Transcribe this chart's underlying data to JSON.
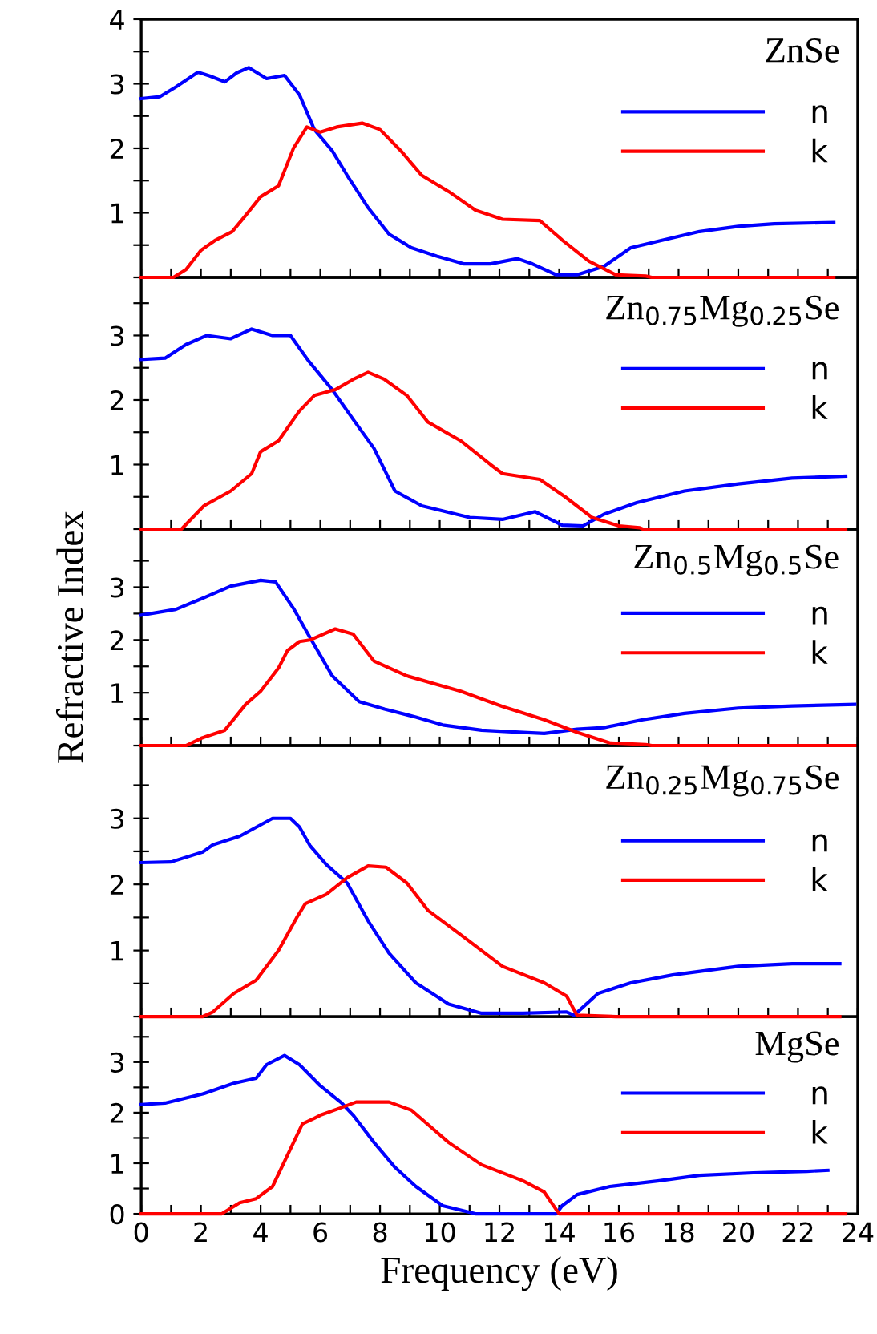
{
  "chart_data": [
    {
      "type": "line",
      "title": "ZnSe",
      "legend": "top right",
      "grid": false,
      "tick_labels": "y",
      "xlim": [
        0,
        24
      ],
      "ylim": [
        0,
        4
      ],
      "xticks": [
        {
          "value": 0,
          "label": null
        },
        {
          "value": 1,
          "label": null
        },
        {
          "value": 2,
          "label": null
        },
        {
          "value": 3,
          "label": null
        },
        {
          "value": 4,
          "label": null
        },
        {
          "value": 5,
          "label": null
        },
        {
          "value": 6,
          "label": null
        },
        {
          "value": 7,
          "label": null
        },
        {
          "value": 8,
          "label": null
        },
        {
          "value": 9,
          "label": null
        },
        {
          "value": 10,
          "label": null
        },
        {
          "value": 11,
          "label": null
        },
        {
          "value": 12,
          "label": null
        },
        {
          "value": 13,
          "label": null
        },
        {
          "value": 14,
          "label": null
        },
        {
          "value": 15,
          "label": null
        },
        {
          "value": 16,
          "label": null
        },
        {
          "value": 17,
          "label": null
        },
        {
          "value": 18,
          "label": null
        },
        {
          "value": 19,
          "label": null
        },
        {
          "value": 20,
          "label": null
        },
        {
          "value": 21,
          "label": null
        },
        {
          "value": 22,
          "label": null
        },
        {
          "value": 23,
          "label": null
        },
        {
          "value": 24,
          "label": null
        }
      ],
      "yticks": [
        {
          "value": 0,
          "label": null
        },
        {
          "value": 0.5,
          "label": null
        },
        1,
        {
          "value": 1.5,
          "label": null
        },
        2,
        {
          "value": 2.5,
          "label": null
        },
        3,
        {
          "value": 3.5,
          "label": null
        },
        4
      ],
      "series": [
        {
          "name": "n",
          "color": "#0000ff",
          "x": [
            0,
            0.63,
            1.16,
            1.9,
            2.3,
            2.8,
            3.2,
            3.6,
            4.2,
            4.8,
            5.3,
            5.8,
            6.4,
            6.9,
            7.6,
            8.3,
            9.05,
            9.9,
            10.8,
            11.7,
            12.6,
            13.1,
            13.9,
            14.6,
            15.5,
            16.4,
            17.5,
            18.7,
            20,
            21.2,
            23.2
          ],
          "values": [
            2.77,
            2.8,
            2.95,
            3.18,
            3.12,
            3.03,
            3.17,
            3.25,
            3.08,
            3.13,
            2.83,
            2.29,
            1.96,
            1.58,
            1.08,
            0.67,
            0.46,
            0.33,
            0.21,
            0.21,
            0.29,
            0.21,
            0.04,
            0.04,
            0.17,
            0.46,
            0.58,
            0.71,
            0.79,
            0.83,
            0.85
          ]
        },
        {
          "name": "k",
          "color": "#ff0000",
          "x": [
            0,
            1.08,
            1.5,
            2.0,
            2.5,
            3.05,
            3.5,
            4.0,
            4.6,
            5.1,
            5.55,
            6.0,
            6.55,
            7.4,
            8.0,
            8.7,
            9.4,
            10.3,
            11.2,
            12.1,
            13.35,
            14.1,
            15.0,
            15.9,
            16.9,
            17.1,
            23.2
          ],
          "values": [
            0,
            0,
            0.12,
            0.42,
            0.58,
            0.71,
            0.96,
            1.25,
            1.42,
            2.0,
            2.33,
            2.25,
            2.33,
            2.39,
            2.29,
            1.96,
            1.58,
            1.33,
            1.04,
            0.9,
            0.88,
            0.58,
            0.25,
            0.04,
            0.02,
            0,
            0
          ]
        }
      ]
    },
    {
      "type": "line",
      "title": "Zn$_{0.75}$Mg$_{0.25}$Se",
      "legend": "top right",
      "grid": false,
      "tick_labels": "y",
      "xlim": [
        0,
        24
      ],
      "ylim": [
        0,
        3.9
      ],
      "xticks": [
        {
          "value": 0,
          "label": null
        },
        {
          "value": 1,
          "label": null
        },
        {
          "value": 2,
          "label": null
        },
        {
          "value": 3,
          "label": null
        },
        {
          "value": 4,
          "label": null
        },
        {
          "value": 5,
          "label": null
        },
        {
          "value": 6,
          "label": null
        },
        {
          "value": 7,
          "label": null
        },
        {
          "value": 8,
          "label": null
        },
        {
          "value": 9,
          "label": null
        },
        {
          "value": 10,
          "label": null
        },
        {
          "value": 11,
          "label": null
        },
        {
          "value": 12,
          "label": null
        },
        {
          "value": 13,
          "label": null
        },
        {
          "value": 14,
          "label": null
        },
        {
          "value": 15,
          "label": null
        },
        {
          "value": 16,
          "label": null
        },
        {
          "value": 17,
          "label": null
        },
        {
          "value": 18,
          "label": null
        },
        {
          "value": 19,
          "label": null
        },
        {
          "value": 20,
          "label": null
        },
        {
          "value": 21,
          "label": null
        },
        {
          "value": 22,
          "label": null
        },
        {
          "value": 23,
          "label": null
        },
        {
          "value": 24,
          "label": null
        }
      ],
      "yticks": [
        {
          "value": 0,
          "label": null
        },
        {
          "value": 0.5,
          "label": null
        },
        1,
        {
          "value": 1.5,
          "label": null
        },
        2,
        {
          "value": 2.5,
          "label": null
        },
        3,
        {
          "value": 3.5,
          "label": null
        }
      ],
      "series": [
        {
          "name": "n",
          "color": "#0000ff",
          "x": [
            0,
            0.8,
            1.5,
            2.2,
            3.0,
            3.7,
            4.4,
            5.0,
            5.6,
            6.4,
            7.1,
            7.8,
            8.5,
            9.4,
            11.0,
            12.1,
            13.2,
            14.1,
            14.8,
            15.5,
            16.6,
            18.2,
            20.0,
            21.8,
            23.6
          ],
          "values": [
            2.63,
            2.65,
            2.86,
            3.0,
            2.95,
            3.1,
            3.0,
            3.0,
            2.61,
            2.16,
            1.7,
            1.25,
            0.59,
            0.36,
            0.18,
            0.15,
            0.27,
            0.06,
            0.05,
            0.23,
            0.41,
            0.59,
            0.7,
            0.79,
            0.82
          ]
        },
        {
          "name": "k",
          "color": "#ff0000",
          "x": [
            0,
            1.35,
            2.1,
            3.0,
            3.7,
            4.0,
            4.6,
            5.3,
            5.8,
            6.5,
            7.1,
            7.6,
            8.15,
            8.9,
            9.6,
            10.7,
            11.7,
            12.1,
            13.35,
            14.2,
            15.1,
            16.0,
            16.7,
            16.8,
            23.6
          ],
          "values": [
            0,
            0,
            0.36,
            0.59,
            0.86,
            1.2,
            1.37,
            1.83,
            2.07,
            2.16,
            2.32,
            2.43,
            2.32,
            2.07,
            1.66,
            1.37,
            1.0,
            0.86,
            0.77,
            0.5,
            0.18,
            0.05,
            0.02,
            0,
            0
          ]
        }
      ]
    },
    {
      "type": "line",
      "title": "Zn$_{0.5}$Mg$_{0.5}$Se",
      "legend": "top right",
      "grid": false,
      "tick_labels": "y",
      "ylabel": "Refractive Index",
      "xlim": [
        0,
        24
      ],
      "ylim": [
        0,
        4.1
      ],
      "xticks": [
        {
          "value": 0,
          "label": null
        },
        {
          "value": 1,
          "label": null
        },
        {
          "value": 2,
          "label": null
        },
        {
          "value": 3,
          "label": null
        },
        {
          "value": 4,
          "label": null
        },
        {
          "value": 5,
          "label": null
        },
        {
          "value": 6,
          "label": null
        },
        {
          "value": 7,
          "label": null
        },
        {
          "value": 8,
          "label": null
        },
        {
          "value": 9,
          "label": null
        },
        {
          "value": 10,
          "label": null
        },
        {
          "value": 11,
          "label": null
        },
        {
          "value": 12,
          "label": null
        },
        {
          "value": 13,
          "label": null
        },
        {
          "value": 14,
          "label": null
        },
        {
          "value": 15,
          "label": null
        },
        {
          "value": 16,
          "label": null
        },
        {
          "value": 17,
          "label": null
        },
        {
          "value": 18,
          "label": null
        },
        {
          "value": 19,
          "label": null
        },
        {
          "value": 20,
          "label": null
        },
        {
          "value": 21,
          "label": null
        },
        {
          "value": 22,
          "label": null
        },
        {
          "value": 23,
          "label": null
        },
        {
          "value": 24,
          "label": null
        }
      ],
      "yticks": [
        {
          "value": 0,
          "label": null
        },
        {
          "value": 0.5,
          "label": null
        },
        1,
        {
          "value": 1.5,
          "label": null
        },
        2,
        {
          "value": 2.5,
          "label": null
        },
        3,
        {
          "value": 3.5,
          "label": null
        }
      ],
      "series": [
        {
          "name": "n",
          "color": "#0000ff",
          "x": [
            0,
            1.16,
            2.06,
            3.0,
            4.0,
            4.5,
            5.1,
            5.6,
            6.4,
            7.3,
            8.15,
            9.2,
            10.1,
            11.4,
            12.8,
            13.5,
            14.6,
            15.5,
            16.8,
            18.2,
            20.0,
            21.8,
            23.9
          ],
          "values": [
            2.47,
            2.58,
            2.79,
            3.02,
            3.13,
            3.1,
            2.6,
            2.1,
            1.32,
            0.83,
            0.69,
            0.54,
            0.39,
            0.29,
            0.25,
            0.23,
            0.31,
            0.34,
            0.49,
            0.61,
            0.71,
            0.75,
            0.78
          ]
        },
        {
          "name": "k",
          "color": "#ff0000",
          "x": [
            0,
            1.5,
            2.06,
            2.8,
            3.5,
            4.0,
            4.6,
            4.9,
            5.3,
            5.65,
            6.5,
            7.1,
            7.8,
            8.9,
            10.7,
            12.1,
            13.5,
            14.6,
            15.7,
            16.9,
            17.1,
            23.9
          ],
          "values": [
            0,
            0,
            0.15,
            0.29,
            0.78,
            1.03,
            1.47,
            1.8,
            1.97,
            2.0,
            2.21,
            2.11,
            1.6,
            1.32,
            1.03,
            0.74,
            0.49,
            0.25,
            0.05,
            0.02,
            0,
            0
          ]
        }
      ]
    },
    {
      "type": "line",
      "title": "Zn$_{0.25}$Mg$_{0.75}$Se",
      "legend": "top right",
      "grid": false,
      "tick_labels": "y",
      "xlim": [
        0,
        24
      ],
      "ylim": [
        0,
        4.1
      ],
      "xticks": [
        {
          "value": 0,
          "label": null
        },
        {
          "value": 1,
          "label": null
        },
        {
          "value": 2,
          "label": null
        },
        {
          "value": 3,
          "label": null
        },
        {
          "value": 4,
          "label": null
        },
        {
          "value": 5,
          "label": null
        },
        {
          "value": 6,
          "label": null
        },
        {
          "value": 7,
          "label": null
        },
        {
          "value": 8,
          "label": null
        },
        {
          "value": 9,
          "label": null
        },
        {
          "value": 10,
          "label": null
        },
        {
          "value": 11,
          "label": null
        },
        {
          "value": 12,
          "label": null
        },
        {
          "value": 13,
          "label": null
        },
        {
          "value": 14,
          "label": null
        },
        {
          "value": 15,
          "label": null
        },
        {
          "value": 16,
          "label": null
        },
        {
          "value": 17,
          "label": null
        },
        {
          "value": 18,
          "label": null
        },
        {
          "value": 19,
          "label": null
        },
        {
          "value": 20,
          "label": null
        },
        {
          "value": 21,
          "label": null
        },
        {
          "value": 22,
          "label": null
        },
        {
          "value": 23,
          "label": null
        },
        {
          "value": 24,
          "label": null
        }
      ],
      "yticks": [
        {
          "value": 0,
          "label": null
        },
        {
          "value": 0.5,
          "label": null
        },
        1,
        {
          "value": 1.5,
          "label": null
        },
        2,
        {
          "value": 2.5,
          "label": null
        },
        3,
        {
          "value": 3.5,
          "label": null
        }
      ],
      "series": [
        {
          "name": "n",
          "color": "#0000ff",
          "x": [
            0,
            1.0,
            2.06,
            2.4,
            3.3,
            4.4,
            5.0,
            5.3,
            5.65,
            6.2,
            6.9,
            7.6,
            8.3,
            9.2,
            10.3,
            11.4,
            12.8,
            14.25,
            14.5,
            15.3,
            16.4,
            17.8,
            20.0,
            21.8,
            23.4
          ],
          "values": [
            2.33,
            2.34,
            2.49,
            2.6,
            2.73,
            3.0,
            3.0,
            2.87,
            2.59,
            2.3,
            2.02,
            1.45,
            0.96,
            0.51,
            0.19,
            0.05,
            0.05,
            0.07,
            0.02,
            0.35,
            0.51,
            0.63,
            0.76,
            0.8,
            0.8
          ]
        },
        {
          "name": "k",
          "color": "#ff0000",
          "x": [
            0,
            2.06,
            2.4,
            3.1,
            3.85,
            4.6,
            5.2,
            5.5,
            6.2,
            6.9,
            7.6,
            8.2,
            8.9,
            9.6,
            10.7,
            12.1,
            13.5,
            14.25,
            14.6,
            15.9,
            23.4
          ],
          "values": [
            0,
            0,
            0.07,
            0.35,
            0.55,
            1.0,
            1.49,
            1.71,
            1.85,
            2.1,
            2.28,
            2.26,
            2.02,
            1.61,
            1.24,
            0.76,
            0.51,
            0.31,
            0.02,
            0,
            0
          ]
        }
      ]
    },
    {
      "type": "line",
      "title": "MgSe",
      "legend": "right",
      "grid": false,
      "xlabel": "Frequency (eV)",
      "xlim": [
        0,
        24
      ],
      "ylim": [
        0,
        3.9
      ],
      "xticks": [
        0,
        {
          "value": 1,
          "label": null
        },
        2,
        {
          "value": 3,
          "label": null
        },
        4,
        {
          "value": 5,
          "label": null
        },
        6,
        {
          "value": 7,
          "label": null
        },
        8,
        {
          "value": 9,
          "label": null
        },
        10,
        {
          "value": 11,
          "label": null
        },
        12,
        {
          "value": 13,
          "label": null
        },
        14,
        {
          "value": 15,
          "label": null
        },
        16,
        {
          "value": 17,
          "label": null
        },
        18,
        {
          "value": 19,
          "label": null
        },
        20,
        {
          "value": 21,
          "label": null
        },
        22,
        {
          "value": 23,
          "label": null
        },
        24
      ],
      "yticks": [
        0,
        {
          "value": 0.5,
          "label": null
        },
        1,
        {
          "value": 1.5,
          "label": null
        },
        2,
        {
          "value": 2.5,
          "label": null
        },
        3,
        {
          "value": 3.5,
          "label": null
        }
      ],
      "series": [
        {
          "name": "n",
          "color": "#0000ff",
          "x": [
            0,
            0.8,
            2.06,
            3.1,
            3.85,
            4.2,
            4.8,
            5.3,
            6.0,
            6.7,
            7.1,
            7.8,
            8.5,
            9.2,
            10.1,
            11.2,
            13.9,
            14.1,
            14.6,
            15.7,
            17.3,
            18.7,
            20.5,
            22.3,
            23.0
          ],
          "values": [
            2.16,
            2.19,
            2.37,
            2.58,
            2.68,
            2.95,
            3.13,
            2.95,
            2.53,
            2.2,
            1.95,
            1.41,
            0.92,
            0.54,
            0.16,
            0,
            0,
            0.16,
            0.38,
            0.54,
            0.65,
            0.76,
            0.81,
            0.84,
            0.86
          ]
        },
        {
          "name": "k",
          "color": "#ff0000",
          "x": [
            0,
            2.7,
            3.3,
            3.85,
            4.4,
            5.4,
            5.8,
            6.0,
            6.7,
            7.2,
            8.3,
            9.05,
            10.3,
            11.4,
            12.8,
            13.5,
            14.0,
            23.6
          ],
          "values": [
            0,
            0,
            0.22,
            0.3,
            0.54,
            1.78,
            1.89,
            1.95,
            2.1,
            2.21,
            2.21,
            2.05,
            1.41,
            0.97,
            0.65,
            0.43,
            0,
            0
          ]
        }
      ]
    }
  ]
}
